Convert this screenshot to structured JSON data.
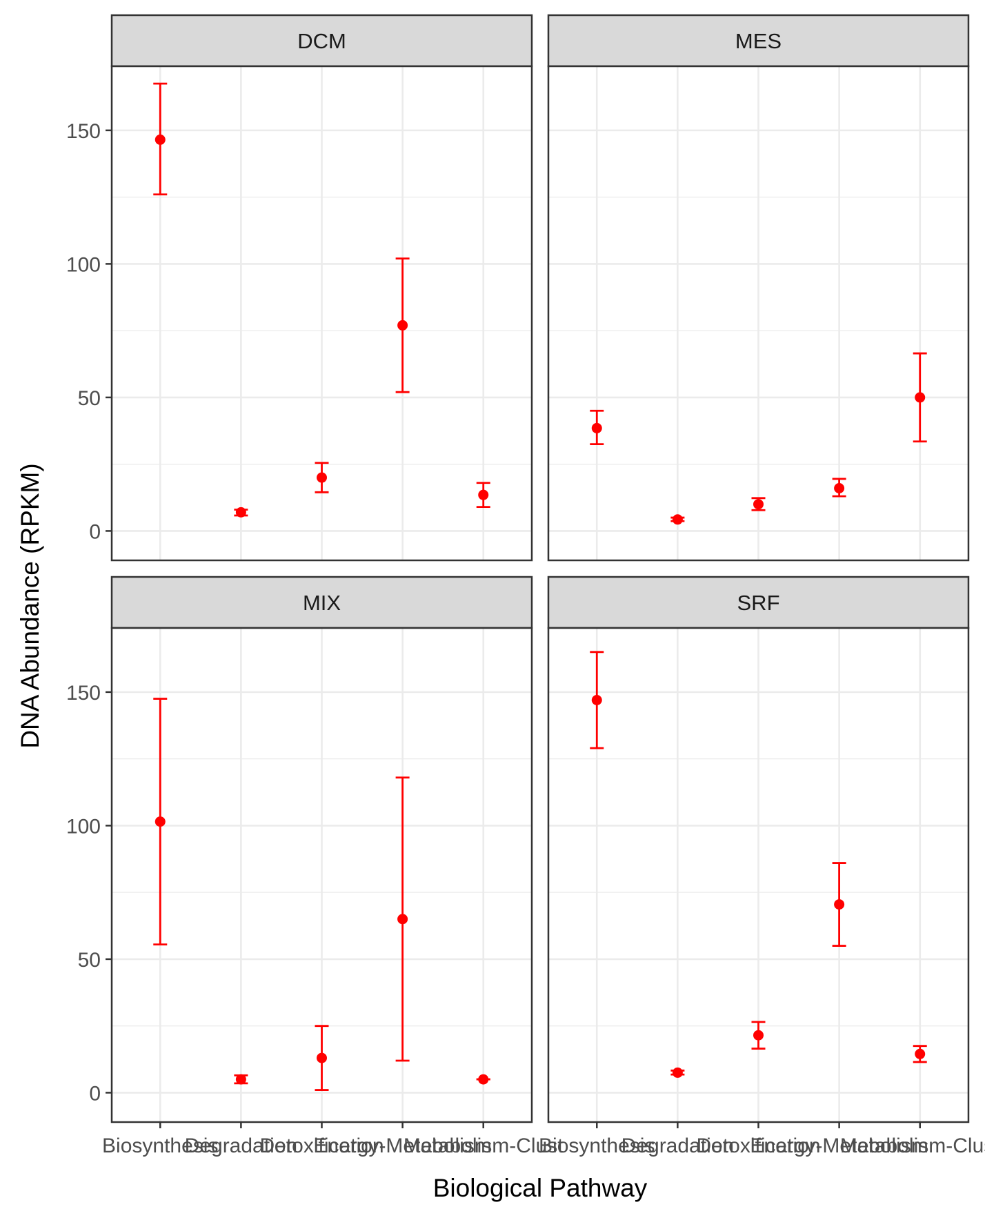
{
  "chart_data": {
    "type": "scatter",
    "subtype": "faceted point-range (mean with error bars)",
    "xlabel": "Biological Pathway",
    "ylabel": "DNA Abundance (RPKM)",
    "categories": [
      "Biosynthesis",
      "Degradation",
      "Detoxification",
      "Energy-Metabolism",
      "Clusters"
    ],
    "categories_visible_text": [
      "Biosynthesis",
      "Degradation",
      "Detoxification",
      "Energy-Metabolism",
      "Metabolism-Clust"
    ],
    "ylim": [
      -11,
      174
    ],
    "yticks": [
      0,
      50,
      100,
      150
    ],
    "grid": true,
    "point_color": "#ff0000",
    "panel_border_color": "#333333",
    "strip_fill": "#d9d9d9",
    "grid_color": "#ebebeb",
    "facets": [
      {
        "name": "DCM",
        "points": [
          {
            "category": "Biosynthesis",
            "y": 146.5,
            "ymin": 126.0,
            "ymax": 167.5
          },
          {
            "category": "Degradation",
            "y": 7.0,
            "ymin": 5.8,
            "ymax": 8.0
          },
          {
            "category": "Detoxification",
            "y": 20.0,
            "ymin": 14.5,
            "ymax": 25.5
          },
          {
            "category": "Energy-Metabolism",
            "y": 77.0,
            "ymin": 52.0,
            "ymax": 102.0
          },
          {
            "category": "Clusters",
            "y": 13.5,
            "ymin": 9.0,
            "ymax": 18.0
          }
        ]
      },
      {
        "name": "MES",
        "points": [
          {
            "category": "Biosynthesis",
            "y": 38.5,
            "ymin": 32.5,
            "ymax": 45.0
          },
          {
            "category": "Degradation",
            "y": 4.3,
            "ymin": 3.7,
            "ymax": 5.0
          },
          {
            "category": "Detoxification",
            "y": 10.0,
            "ymin": 7.8,
            "ymax": 12.3
          },
          {
            "category": "Energy-Metabolism",
            "y": 16.0,
            "ymin": 13.0,
            "ymax": 19.5
          },
          {
            "category": "Clusters",
            "y": 50.0,
            "ymin": 33.5,
            "ymax": 66.5
          }
        ]
      },
      {
        "name": "MIX",
        "points": [
          {
            "category": "Biosynthesis",
            "y": 101.5,
            "ymin": 55.5,
            "ymax": 147.5
          },
          {
            "category": "Degradation",
            "y": 5.0,
            "ymin": 3.5,
            "ymax": 6.5
          },
          {
            "category": "Detoxification",
            "y": 13.0,
            "ymin": 1.0,
            "ymax": 25.0
          },
          {
            "category": "Energy-Metabolism",
            "y": 65.0,
            "ymin": 12.0,
            "ymax": 118.0
          },
          {
            "category": "Clusters",
            "y": 5.0,
            "ymin": 5.0,
            "ymax": 5.0
          }
        ]
      },
      {
        "name": "SRF",
        "points": [
          {
            "category": "Biosynthesis",
            "y": 147.0,
            "ymin": 129.0,
            "ymax": 165.0
          },
          {
            "category": "Degradation",
            "y": 7.5,
            "ymin": 6.8,
            "ymax": 8.3
          },
          {
            "category": "Detoxification",
            "y": 21.5,
            "ymin": 16.5,
            "ymax": 26.5
          },
          {
            "category": "Energy-Metabolism",
            "y": 70.5,
            "ymin": 55.0,
            "ymax": 86.0
          },
          {
            "category": "Clusters",
            "y": 14.5,
            "ymin": 11.5,
            "ymax": 17.5
          }
        ]
      }
    ]
  }
}
